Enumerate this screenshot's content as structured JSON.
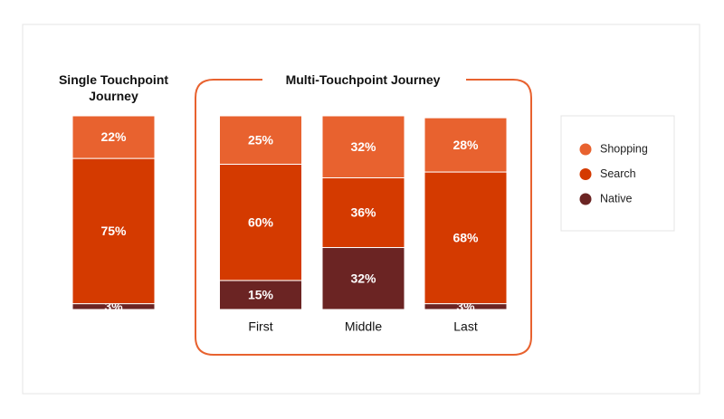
{
  "chart_data": {
    "type": "stacked_bar",
    "group_titles": [
      "Single Touchpoint Journey",
      "Multi-Touchpoint Journey"
    ],
    "categories": [
      null,
      "First",
      "Middle",
      "Last"
    ],
    "ylim": [
      0,
      100
    ],
    "legend": "right",
    "series": [
      {
        "name": "Shopping",
        "color": "#e8622f",
        "values": [
          22,
          25,
          32,
          28
        ],
        "value_labels": [
          "22%",
          "25%",
          "32%",
          "28%"
        ]
      },
      {
        "name": "Search",
        "color": "#d43a00",
        "values": [
          75,
          60,
          36,
          68
        ],
        "value_labels": [
          "75%",
          "60%",
          "36%",
          "68%"
        ]
      },
      {
        "name": "Native",
        "color": "#6b2423",
        "values": [
          3,
          15,
          32,
          3
        ],
        "value_labels": [
          "3%",
          "15%",
          "32%",
          "3%"
        ]
      }
    ]
  }
}
